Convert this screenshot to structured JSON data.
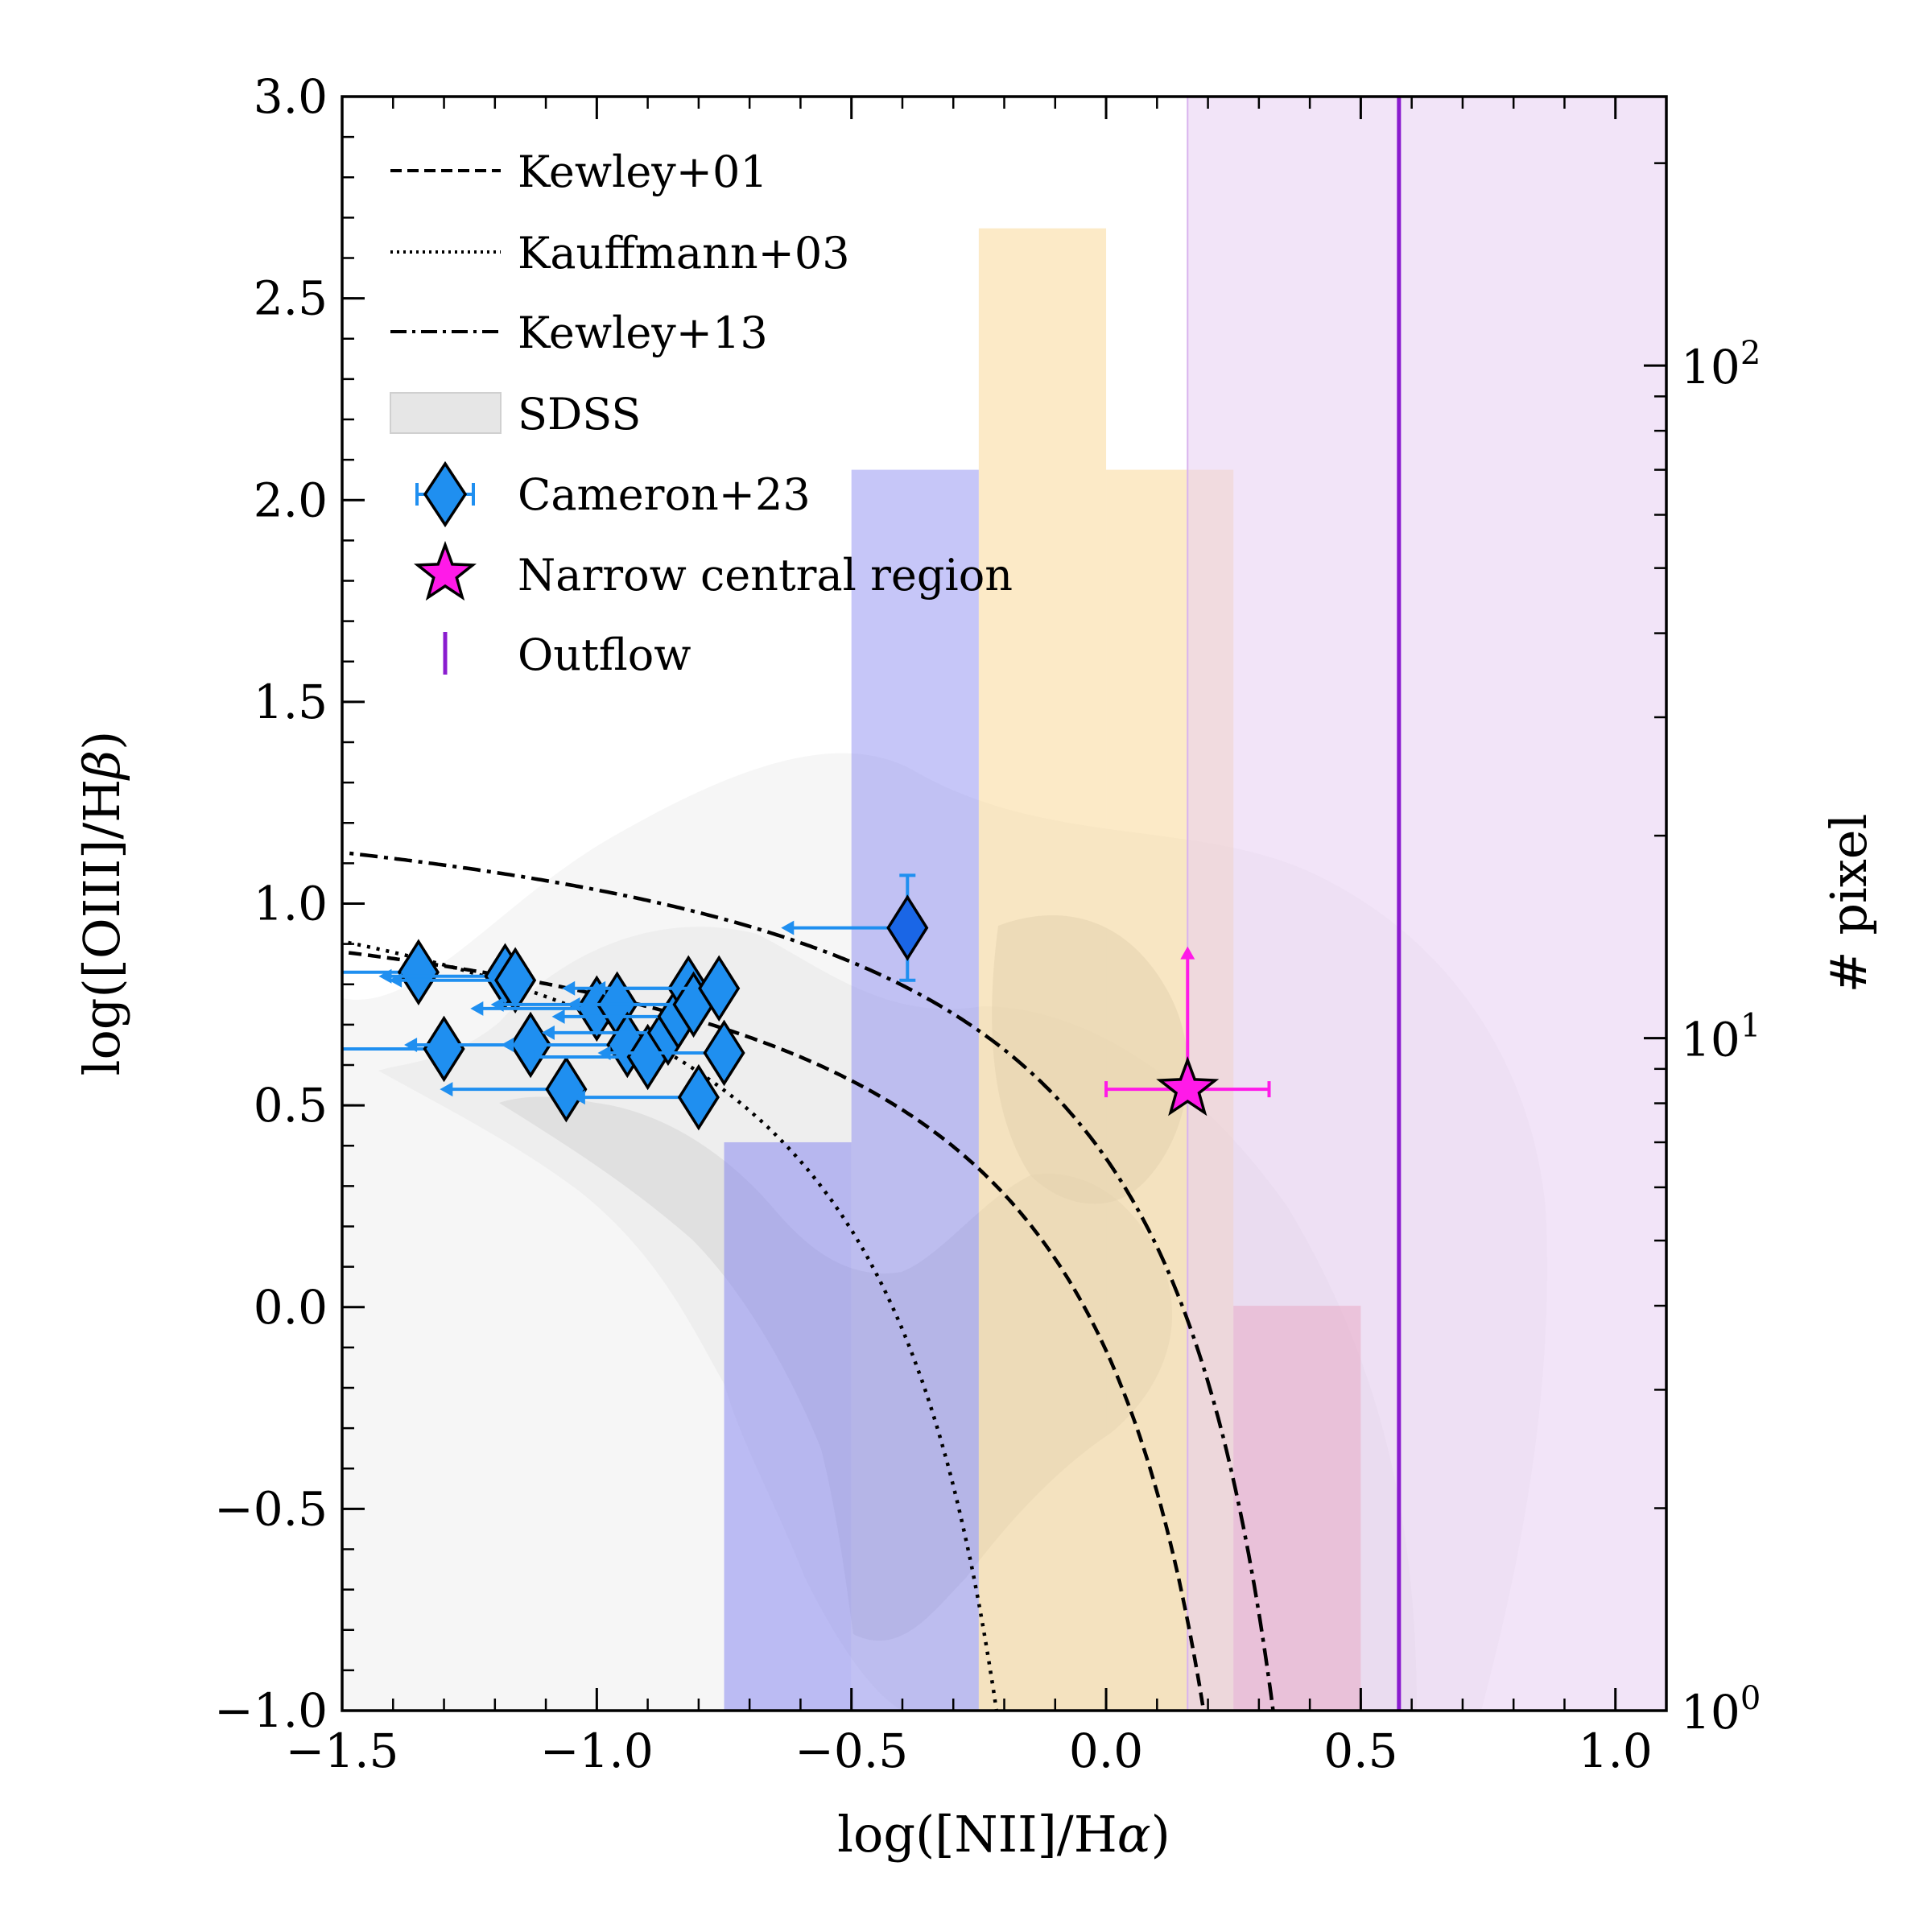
{
  "chart_data": {
    "type": "scatter",
    "xlabel": "log([NII]/Hα)",
    "ylabel": "log([OIII]/Hβ)",
    "y2label": "# pixel",
    "xlim": [
      -1.5,
      1.1
    ],
    "ylim": [
      -1.0,
      3.0
    ],
    "y2lim_log10": [
      0,
      2.4
    ],
    "x_ticks": [
      -1.5,
      -1.0,
      -0.5,
      0.0,
      0.5,
      1.0
    ],
    "x_tick_labels": [
      "−1.5",
      "−1.0",
      "−0.5",
      "0.0",
      "0.5",
      "1.0"
    ],
    "y_ticks": [
      -1.0,
      -0.5,
      0.0,
      0.5,
      1.0,
      1.5,
      2.0,
      2.5,
      3.0
    ],
    "y_tick_labels": [
      "−1.0",
      "−0.5",
      "0.0",
      "0.5",
      "1.0",
      "1.5",
      "2.0",
      "2.5",
      "3.0"
    ],
    "y2_ticks": [
      {
        "exp": 0,
        "label": "10",
        "sup": "0"
      },
      {
        "exp": 1,
        "label": "10",
        "sup": "1"
      },
      {
        "exp": 2,
        "label": "10",
        "sup": "2"
      }
    ],
    "legend": [
      {
        "key": "kewley01",
        "label": "Kewley+01"
      },
      {
        "key": "kauffmann03",
        "label": "Kauffmann+03"
      },
      {
        "key": "kewley13",
        "label": "Kewley+13"
      },
      {
        "key": "sdss",
        "label": "SDSS"
      },
      {
        "key": "cameron23",
        "label": "Cameron+23"
      },
      {
        "key": "narrow",
        "label": "Narrow central region"
      },
      {
        "key": "outflow",
        "label": "Outflow"
      }
    ],
    "histogram_bins": [
      {
        "x0": -0.75,
        "x1": -0.5,
        "count": 7,
        "color": "#8080f0",
        "opacity": 0.5
      },
      {
        "x0": -0.5,
        "x1": -0.25,
        "count": 70,
        "color": "#8080f0",
        "opacity": 0.45
      },
      {
        "x0": -0.25,
        "x1": 0.0,
        "count": 160,
        "color": "#f9d68f",
        "opacity": 0.5
      },
      {
        "x0": 0.0,
        "x1": 0.25,
        "count": 70,
        "color": "#f9d68f",
        "opacity": 0.5
      },
      {
        "x0": 0.25,
        "x1": 0.5,
        "count": 4,
        "color": "#e8687a",
        "opacity": 0.45
      }
    ],
    "outflow": {
      "x": 0.575,
      "span_x0": 0.16,
      "span_x1": 1.1,
      "color": "#8a1ccf",
      "span_color": "#e7cdf3"
    },
    "cameron23": [
      {
        "x": -1.35,
        "y": 0.83,
        "upper_x": true
      },
      {
        "x": -1.3,
        "y": 0.64,
        "upper_x": true
      },
      {
        "x": -1.18,
        "y": 0.82,
        "upper_x": true
      },
      {
        "x": -1.16,
        "y": 0.81,
        "upper_x": true
      },
      {
        "x": -1.13,
        "y": 0.65,
        "upper_x": true
      },
      {
        "x": -1.06,
        "y": 0.54,
        "upper_x": true
      },
      {
        "x": -1.0,
        "y": 0.74,
        "upper_x": true
      },
      {
        "x": -0.96,
        "y": 0.75,
        "upper_x": true
      },
      {
        "x": -0.94,
        "y": 0.65,
        "upper_x": true
      },
      {
        "x": -0.9,
        "y": 0.62,
        "upper_x": true
      },
      {
        "x": -0.86,
        "y": 0.68,
        "upper_x": true
      },
      {
        "x": -0.84,
        "y": 0.72,
        "upper_x": true
      },
      {
        "x": -0.82,
        "y": 0.79,
        "upper_x": true
      },
      {
        "x": -0.81,
        "y": 0.75,
        "upper_x": true
      },
      {
        "x": -0.8,
        "y": 0.52,
        "upper_x": true
      },
      {
        "x": -0.76,
        "y": 0.79,
        "upper_x": true
      },
      {
        "x": -0.75,
        "y": 0.63,
        "upper_x": true
      },
      {
        "x": -0.39,
        "y": 0.94,
        "upper_x": true,
        "y_err": [
          0.13,
          0.13
        ],
        "highlight": true
      }
    ],
    "narrow_region": {
      "x": 0.16,
      "y": 0.54,
      "x_err": [
        0.16,
        0.16
      ],
      "y_up": 0.33
    }
  }
}
